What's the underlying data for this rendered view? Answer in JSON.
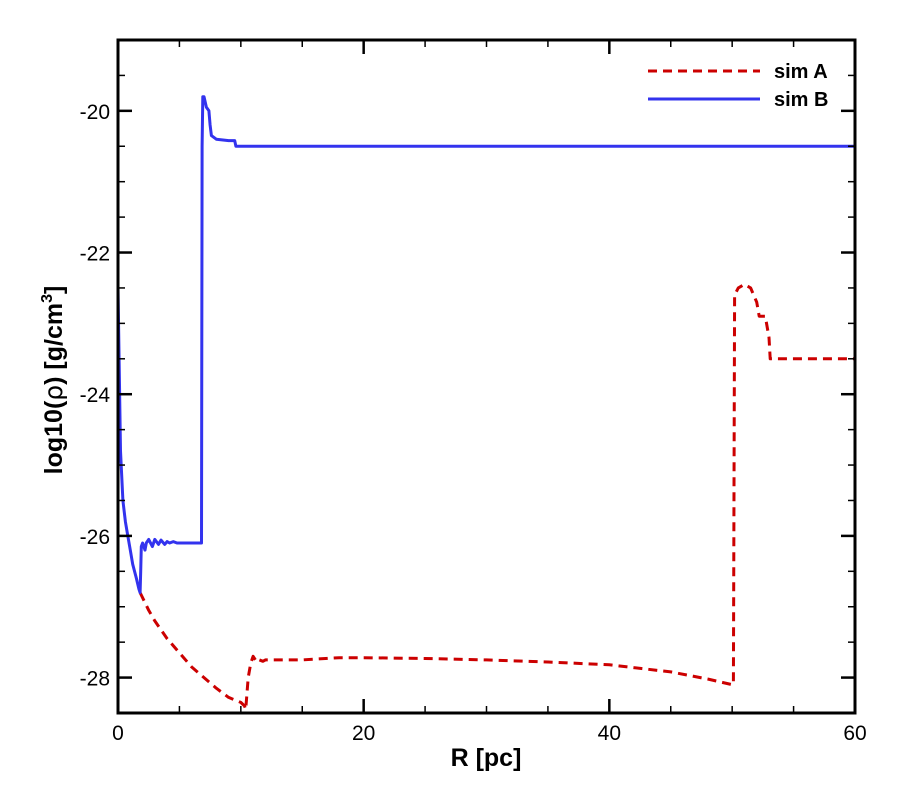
{
  "chart_data": {
    "type": "line",
    "title": "",
    "xlabel": "R [pc]",
    "ylabel_parts": [
      "log10(",
      "ρ",
      ") [g/cm",
      "3",
      "]"
    ],
    "xlim": [
      0,
      60
    ],
    "ylim": [
      -28.5,
      -19
    ],
    "x_ticks": [
      0,
      20,
      40,
      60
    ],
    "x_minor_step": 5,
    "y_ticks": [
      -28,
      -26,
      -24,
      -22,
      -20
    ],
    "y_minor_step": 0.5,
    "grid": false,
    "legend_position": "top-right",
    "series": [
      {
        "name": "sim A",
        "color": "#cc0000",
        "style": "dashed",
        "x": [
          1.8,
          2.5,
          3,
          4,
          5,
          6,
          7,
          8,
          9,
          10,
          10.3,
          10.4,
          10.6,
          10.8,
          11,
          11.3,
          11.5,
          11.8,
          12,
          13,
          15,
          18,
          20,
          25,
          30,
          35,
          40,
          45,
          48,
          50,
          50.1,
          50.2,
          50.5,
          51,
          51.5,
          52,
          52.2,
          52.5,
          52.7,
          53,
          53.1,
          54,
          60
        ],
        "y": [
          -26.8,
          -27.05,
          -27.2,
          -27.45,
          -27.65,
          -27.85,
          -28.0,
          -28.15,
          -28.28,
          -28.35,
          -28.4,
          -28.45,
          -28.0,
          -27.8,
          -27.7,
          -27.78,
          -27.75,
          -27.77,
          -27.75,
          -27.75,
          -27.75,
          -27.72,
          -27.72,
          -27.73,
          -27.75,
          -27.78,
          -27.82,
          -27.92,
          -28.02,
          -28.1,
          -28.1,
          -22.6,
          -22.5,
          -22.45,
          -22.5,
          -22.7,
          -22.9,
          -22.9,
          -22.9,
          -23.2,
          -23.5,
          -23.5,
          -23.5
        ]
      },
      {
        "name": "sim B",
        "color": "#3333ee",
        "style": "solid",
        "x": [
          0,
          0.2,
          0.4,
          0.6,
          0.8,
          1.0,
          1.2,
          1.5,
          1.7,
          1.8,
          1.85,
          1.9,
          2.0,
          2.2,
          2.3,
          2.5,
          2.8,
          3.0,
          3.3,
          3.5,
          3.8,
          4.0,
          4.2,
          4.5,
          4.8,
          5.0,
          6.0,
          6.8,
          6.85,
          6.9,
          7.0,
          7.2,
          7.4,
          7.5,
          7.6,
          8.0,
          9.0,
          9.5,
          9.6,
          9.7,
          10,
          20,
          30,
          40,
          50,
          60
        ],
        "y": [
          -22.5,
          -24.8,
          -25.5,
          -25.8,
          -26.0,
          -26.2,
          -26.4,
          -26.6,
          -26.75,
          -26.8,
          -26.5,
          -26.15,
          -26.1,
          -26.2,
          -26.1,
          -26.05,
          -26.15,
          -26.05,
          -26.12,
          -26.06,
          -26.12,
          -26.08,
          -26.1,
          -26.08,
          -26.1,
          -26.1,
          -26.1,
          -26.1,
          -20.5,
          -19.8,
          -19.8,
          -19.95,
          -20.0,
          -20.2,
          -20.35,
          -20.4,
          -20.42,
          -20.42,
          -20.5,
          -20.5,
          -20.5,
          -20.5,
          -20.5,
          -20.5,
          -20.5,
          -20.5
        ]
      }
    ]
  }
}
